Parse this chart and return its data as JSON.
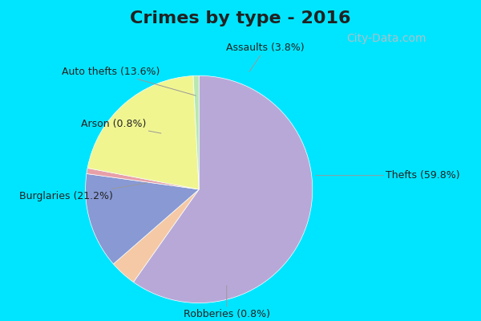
{
  "title": "Crimes by type - 2016",
  "title_fontsize": 16,
  "title_fontweight": "bold",
  "slices": [
    {
      "label": "Thefts (59.8%)",
      "value": 59.8,
      "color": "#b8a8d8"
    },
    {
      "label": "Assaults (3.8%)",
      "value": 3.8,
      "color": "#f5c9a5"
    },
    {
      "label": "Auto thefts (13.6%)",
      "value": 13.6,
      "color": "#8899d4"
    },
    {
      "label": "Arson (0.8%)",
      "value": 0.8,
      "color": "#e8a0a8"
    },
    {
      "label": "Burglaries (21.2%)",
      "value": 21.2,
      "color": "#f0f590"
    },
    {
      "label": "Robberies (0.8%)",
      "value": 0.8,
      "color": "#b8e8b0"
    }
  ],
  "background_cyan": "#00e5ff",
  "background_chart": "#cceedd",
  "title_color": "#222222",
  "label_fontsize": 9,
  "label_color": "#222222",
  "title_bar_height": 0.115,
  "watermark_text": "City-Data.com",
  "watermark_color": "#aac0c8",
  "watermark_fontsize": 10
}
